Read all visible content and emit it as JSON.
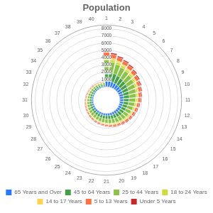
{
  "chart_data": {
    "type": "radial_bar",
    "title": "Population",
    "categories": [
      "1",
      "2",
      "3",
      "4",
      "5",
      "6",
      "7",
      "8",
      "9",
      "10",
      "11",
      "12",
      "13",
      "14",
      "15",
      "16",
      "17",
      "18",
      "19",
      "20",
      "21",
      "22",
      "23",
      "24",
      "25",
      "26",
      "27",
      "28",
      "29",
      "30",
      "31",
      "32",
      "33",
      "34",
      "35",
      "36",
      "37",
      "38",
      "39",
      "40"
    ],
    "series": [
      {
        "name": "65 Years and Over",
        "color": "#2979FF",
        "values": [
          820,
          780,
          740,
          700,
          665,
          630,
          598,
          568,
          540,
          513,
          488,
          464,
          441,
          420,
          400,
          381,
          363,
          346,
          329,
          314,
          299,
          285,
          272,
          259,
          247,
          236,
          225,
          215,
          205,
          196,
          187,
          178,
          170,
          162,
          155,
          148,
          141,
          135,
          129,
          123
        ]
      },
      {
        "name": "45 to 64 Years",
        "color": "#43A047",
        "values": [
          1350,
          1250,
          1180,
          1100,
          1040,
          980,
          930,
          882,
          838,
          797,
          758,
          721,
          686,
          652,
          620,
          590,
          561,
          534,
          508,
          484,
          461,
          439,
          418,
          398,
          380,
          362,
          345,
          329,
          314,
          299,
          285,
          272,
          260,
          248,
          237,
          226,
          216,
          207,
          197,
          188
        ]
      },
      {
        "name": "25 to 44 Years",
        "color": "#8BC34A",
        "values": [
          1500,
          1400,
          1330,
          1260,
          1200,
          1140,
          1085,
          1032,
          982,
          935,
          891,
          848,
          807,
          768,
          731,
          697,
          664,
          633,
          603,
          575,
          548,
          523,
          499,
          476,
          454,
          433,
          413,
          394,
          376,
          359,
          343,
          328,
          313,
          299,
          286,
          273,
          261,
          250,
          239,
          229
        ]
      },
      {
        "name": "18 to 24 Years",
        "color": "#CDDC39",
        "values": [
          350,
          330,
          310,
          295,
          280,
          265,
          252,
          240,
          228,
          217,
          207,
          197,
          187,
          178,
          170,
          162,
          154,
          147,
          140,
          133,
          127,
          121,
          115,
          110,
          105,
          100,
          95,
          91,
          87,
          83,
          79,
          75,
          72,
          69,
          66,
          63,
          60,
          57,
          55,
          52
        ]
      },
      {
        "name": "14 to 17 Years",
        "color": "#FFD54F",
        "values": [
          220,
          210,
          200,
          190,
          182,
          174,
          166,
          159,
          152,
          145,
          138,
          132,
          126,
          120,
          114,
          109,
          104,
          99,
          94,
          90,
          86,
          82,
          78,
          74,
          70,
          67,
          64,
          61,
          58,
          55,
          52,
          50,
          47,
          45,
          43,
          41,
          39,
          37,
          35,
          33
        ]
      },
      {
        "name": "5 to 13 Years",
        "color": "#FF7043",
        "values": [
          560,
          530,
          500,
          475,
          450,
          425,
          402,
          382,
          363,
          345,
          328,
          312,
          297,
          283,
          270,
          257,
          245,
          233,
          222,
          212,
          202,
          193,
          184,
          175,
          167,
          159,
          152,
          145,
          138,
          132,
          126,
          121,
          115,
          110,
          105,
          100,
          96,
          92,
          88,
          84
        ]
      },
      {
        "name": "Under 5 Years",
        "color": "#C62828",
        "values": [
          200,
          190,
          180,
          170,
          162,
          154,
          146,
          139,
          132,
          126,
          120,
          114,
          109,
          104,
          99,
          94,
          90,
          86,
          82,
          78,
          74,
          71,
          68,
          65,
          62,
          59,
          56,
          53,
          51,
          49,
          47,
          45,
          43,
          41,
          39,
          37,
          35,
          33,
          31,
          29
        ]
      }
    ],
    "stacked": true,
    "ylim": [
      0,
      8500
    ],
    "yticks": [
      1000,
      2000,
      3000,
      4000,
      5000,
      6000,
      7000,
      8000
    ],
    "grid": true,
    "legend": "bottom"
  }
}
